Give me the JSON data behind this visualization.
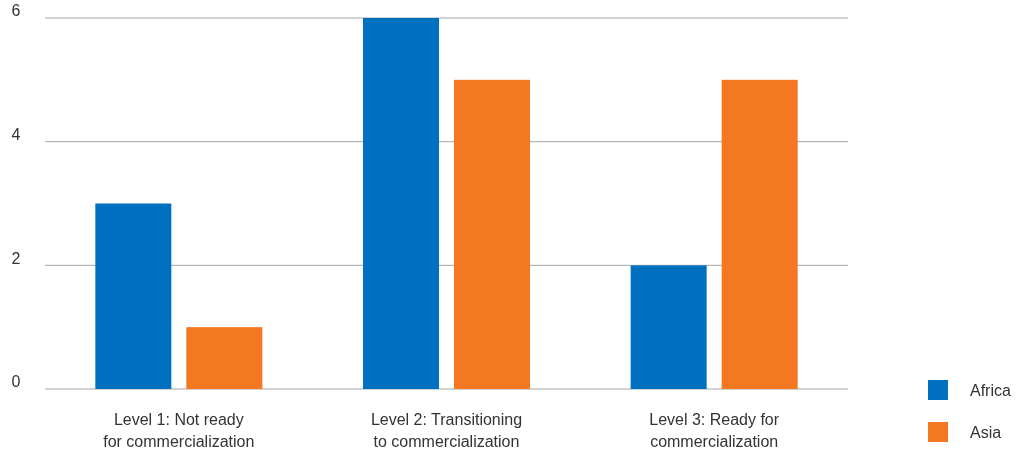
{
  "chart_data": {
    "type": "bar",
    "categories": [
      "Level 1: Not ready for commercialization",
      "Level 2: Transitioning to commercialization",
      "Level 3: Ready for commercialization"
    ],
    "series": [
      {
        "name": "Africa",
        "color": "#0070c0",
        "values": [
          3,
          6,
          2
        ]
      },
      {
        "name": "Asia",
        "color": "#f47721",
        "values": [
          1,
          5,
          5
        ]
      }
    ],
    "ylim": [
      0,
      6
    ],
    "yticks": [
      0,
      2,
      4,
      6
    ],
    "grid": "y",
    "legend": "bottom right"
  }
}
